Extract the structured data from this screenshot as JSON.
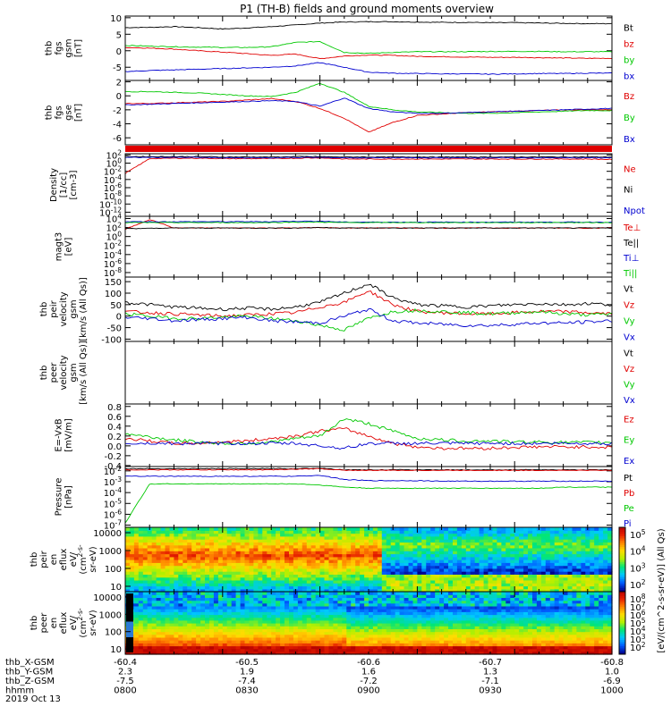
{
  "title": "P1 (TH-B) fields and ground moments overview",
  "date": "2019 Oct 13",
  "colors": {
    "black": "#000000",
    "red": "#e00000",
    "green": "#00c800",
    "blue": "#0000d0"
  },
  "chart_data": [
    {
      "type": "line",
      "ylabel": [
        "thb",
        "fgs",
        "gsm",
        "[nT]"
      ],
      "yticks": [
        10,
        5,
        0,
        -5
      ],
      "ylim": [
        -9,
        10.5
      ],
      "series": [
        {
          "name": "Bt",
          "color": "black",
          "values": [
            7,
            7.1,
            7.3,
            7,
            6.6,
            6.9,
            7.3,
            7.8,
            8.4,
            8.7,
            8.8,
            8.8,
            8.7,
            8.6,
            8.6,
            8.5,
            8.5,
            8.4,
            8.3,
            8.2,
            8.2
          ]
        },
        {
          "name": "bz",
          "color": "red",
          "values": [
            1,
            0.8,
            0.5,
            0,
            -0.4,
            -0.9,
            -1.4,
            -1,
            -2.4,
            -1.6,
            -1.3,
            -1.4,
            -1.7,
            -1.8,
            -1.9,
            -2,
            -2,
            -2.1,
            -2.2,
            -2.3,
            -2.3
          ]
        },
        {
          "name": "by",
          "color": "green",
          "values": [
            1.6,
            1.4,
            1.2,
            1.1,
            1,
            1,
            1.2,
            2.5,
            2.8,
            -0.5,
            -0.8,
            -0.5,
            -0.3,
            -0.3,
            -0.3,
            -0.2,
            -0.2,
            -0.2,
            -0.3,
            -0.3,
            -0.3
          ]
        },
        {
          "name": "bx",
          "color": "blue",
          "values": [
            -6.3,
            -6,
            -5.8,
            -5.6,
            -5.4,
            -5.2,
            -5,
            -4.6,
            -3.6,
            -5,
            -6.5,
            -6.8,
            -6.9,
            -7,
            -7,
            -7.1,
            -7,
            -6.9,
            -6.9,
            -6.8,
            -6.8
          ]
        }
      ]
    },
    {
      "type": "line",
      "ylabel": [
        "thb",
        "fgs",
        "gse",
        "[nT]"
      ],
      "yticks": [
        2,
        0,
        -2,
        -4,
        -6
      ],
      "ylim": [
        -7,
        2.2
      ],
      "series": [
        {
          "name": "Bz",
          "color": "red",
          "values": [
            -1.1,
            -1.1,
            -1,
            -0.9,
            -0.8,
            -0.6,
            -0.4,
            -0.8,
            -1.8,
            -3.2,
            -5.2,
            -3.8,
            -2.8,
            -2.6,
            -2.4,
            -2.3,
            -2.2,
            -2.1,
            -2,
            -2,
            -2
          ]
        },
        {
          "name": "By",
          "color": "green",
          "values": [
            0.6,
            0.6,
            0.5,
            0.4,
            0.2,
            0,
            -0.1,
            0.5,
            1.8,
            0.5,
            -1.5,
            -2,
            -2.3,
            -2.4,
            -2.5,
            -2.5,
            -2.4,
            -2.3,
            -2.2,
            -2.1,
            -2.1
          ]
        },
        {
          "name": "Bx",
          "color": "blue",
          "values": [
            -1.3,
            -1.2,
            -1.1,
            -1,
            -0.9,
            -0.8,
            -0.7,
            -0.8,
            -1.5,
            -0.3,
            -1.8,
            -2.3,
            -2.5,
            -2.5,
            -2.4,
            -2.3,
            -2.2,
            -2.1,
            -2,
            -1.9,
            -1.8
          ]
        }
      ]
    },
    {
      "type": "line",
      "ylabel": [
        "Density",
        "[1/cc]",
        "[cm-3]"
      ],
      "yticks": [
        "10^2",
        "10^0",
        "10^-2",
        "10^-4",
        "10^-6",
        "10^-8",
        "10^-10",
        "10^-12"
      ],
      "ylim": [
        -13,
        2.3
      ],
      "log": true,
      "series": [
        {
          "name": "Ne",
          "color": "red",
          "values": [
            -2.5,
            1.1,
            1.2,
            1.2,
            1.1,
            1.1,
            1.1,
            1.2,
            1.3,
            1,
            1,
            1,
            1,
            1,
            1,
            1,
            1,
            1,
            1,
            1,
            0.9
          ]
        },
        {
          "name": "Ni",
          "color": "black",
          "values": [
            1.6,
            1.6,
            1.6,
            1.6,
            1.5,
            1.5,
            1.5,
            1.6,
            1.6,
            1.5,
            1.5,
            1.5,
            1.5,
            1.5,
            1.5,
            1.5,
            1.5,
            1.5,
            1.5,
            1.5,
            1.5
          ]
        },
        {
          "name": "Npot",
          "color": "blue",
          "values": [
            1.4,
            1.4,
            1.4,
            1.4,
            1.3,
            1.3,
            1.3,
            1.4,
            1.4,
            1.3,
            1.3,
            1.3,
            1.3,
            1.3,
            1.3,
            1.3,
            1.3,
            1.3,
            1.3,
            1.3,
            1.3
          ]
        }
      ]
    },
    {
      "type": "line",
      "ylabel": [
        "magt3",
        "[eV]"
      ],
      "yticks": [
        "10^4",
        "10^2",
        "10^0",
        "10^-2",
        "10^-4",
        "10^-6",
        "10^-8"
      ],
      "ylim": [
        -9,
        4.5
      ],
      "log": true,
      "series": [
        {
          "name": "Te⊥",
          "color": "red",
          "values": [
            1.6,
            3.8,
            1.9,
            1.9,
            1.9,
            1.9,
            1.9,
            1.9,
            2,
            1.9,
            1.9,
            1.9,
            1.9,
            1.9,
            1.9,
            1.9,
            1.9,
            1.9,
            1.9,
            1.9,
            1.9
          ]
        },
        {
          "name": "Te||",
          "color": "black",
          "values": [
            1.8,
            1.8,
            1.9,
            1.9,
            1.9,
            1.9,
            1.9,
            1.9,
            2,
            1.9,
            1.9,
            1.9,
            1.9,
            1.9,
            1.9,
            1.9,
            1.9,
            1.9,
            1.9,
            1.9,
            1.9
          ]
        },
        {
          "name": "Ti⊥",
          "color": "blue",
          "values": [
            3.3,
            3.3,
            3.3,
            3.3,
            3.3,
            3.3,
            3.3,
            3.4,
            3.4,
            3.2,
            3.2,
            3.2,
            3.2,
            3.2,
            3.2,
            3.2,
            3.2,
            3.2,
            3.2,
            3.2,
            3.2
          ]
        },
        {
          "name": "Ti||",
          "color": "green",
          "values": [
            3.1,
            3.1,
            3.1,
            3.1,
            3.1,
            3.1,
            3.1,
            3.2,
            3.2,
            3.1,
            3.1,
            3.1,
            3.1,
            3.1,
            3.1,
            3.1,
            3.1,
            3.1,
            3.1,
            3.1,
            3.1
          ]
        }
      ]
    },
    {
      "type": "line",
      "ylabel": [
        "thb",
        "peir",
        "velocity",
        "gsm",
        "[km/s (All Qs)]"
      ],
      "yticks": [
        150,
        100,
        50,
        0,
        -50,
        -100
      ],
      "ylim": [
        -110,
        170
      ],
      "series": [
        {
          "name": "Vt",
          "color": "black",
          "values": [
            60,
            50,
            40,
            35,
            30,
            35,
            30,
            40,
            60,
            100,
            140,
            80,
            50,
            45,
            40,
            45,
            50,
            55,
            50,
            55,
            50
          ]
        },
        {
          "name": "Vz",
          "color": "red",
          "values": [
            20,
            15,
            10,
            5,
            0,
            5,
            10,
            15,
            40,
            60,
            110,
            50,
            20,
            15,
            10,
            10,
            15,
            20,
            20,
            15,
            10
          ]
        },
        {
          "name": "Vy",
          "color": "green",
          "values": [
            10,
            0,
            -10,
            -10,
            -5,
            0,
            -10,
            -20,
            -40,
            -60,
            -10,
            20,
            25,
            20,
            15,
            10,
            15,
            20,
            10,
            5,
            10
          ]
        },
        {
          "name": "Vx",
          "color": "blue",
          "values": [
            -5,
            -10,
            -20,
            -15,
            -10,
            -5,
            -20,
            -25,
            -30,
            0,
            30,
            -20,
            -30,
            -35,
            -40,
            -40,
            -35,
            -30,
            -30,
            -25,
            -20
          ]
        }
      ]
    },
    {
      "type": "line",
      "ylabel": [
        "thb",
        "peer",
        "velocity",
        "gsm",
        "[km/s (All Qs)]"
      ],
      "yticks": [],
      "ylim": [
        0,
        1
      ],
      "series": [
        {
          "name": "Vt",
          "color": "black",
          "values": []
        },
        {
          "name": "Vz",
          "color": "red",
          "values": []
        },
        {
          "name": "Vy",
          "color": "green",
          "values": []
        },
        {
          "name": "Vx",
          "color": "blue",
          "values": []
        }
      ]
    },
    {
      "type": "line",
      "ylabel": [
        "E=-VxB",
        "[mV/m]"
      ],
      "yticks": [
        0.8,
        0.6,
        0.4,
        0.2,
        0.0,
        -0.2,
        -0.4
      ],
      "ylim": [
        -0.42,
        0.85
      ],
      "series": [
        {
          "name": "Ez",
          "color": "red",
          "values": [
            0.15,
            0.1,
            0.05,
            0.05,
            0.08,
            0.1,
            0.15,
            0.2,
            0.3,
            0.35,
            0.2,
            0.05,
            -0.02,
            -0.05,
            -0.05,
            -0.05,
            -0.03,
            -0.02,
            -0.02,
            -0.02,
            -0.03
          ]
        },
        {
          "name": "Ey",
          "color": "green",
          "values": [
            0.25,
            0.18,
            0.12,
            0.08,
            0.05,
            0.05,
            0.08,
            0.15,
            0.2,
            0.55,
            0.45,
            0.3,
            0.15,
            0.12,
            0.1,
            0.1,
            0.08,
            0.08,
            0.07,
            0.07,
            0.07
          ]
        },
        {
          "name": "Ex",
          "color": "blue",
          "values": [
            0.05,
            0.05,
            0.05,
            0.05,
            0.05,
            0.05,
            0.05,
            0.05,
            0,
            -0.05,
            0.05,
            0.05,
            0.05,
            0.05,
            0.05,
            0.05,
            0.05,
            0.05,
            0.05,
            0.05,
            0.05
          ]
        }
      ]
    },
    {
      "type": "line",
      "ylabel": [
        "Pressure",
        "[nPa]"
      ],
      "yticks": [
        "10^-2",
        "10^-3",
        "10^-4",
        "10^-5",
        "10^-6",
        "10^-7"
      ],
      "ylim": [
        -7.2,
        -1.6
      ],
      "log": true,
      "series": [
        {
          "name": "Pt",
          "color": "black",
          "values": [
            -1.8,
            -1.8,
            -1.8,
            -1.8,
            -1.8,
            -1.8,
            -1.8,
            -1.8,
            -1.75,
            -1.9,
            -1.9,
            -1.9,
            -1.9,
            -1.9,
            -1.9,
            -1.9,
            -1.9,
            -1.9,
            -1.9,
            -1.9,
            -1.9
          ]
        },
        {
          "name": "Pb",
          "color": "red",
          "values": [
            -1.9,
            -1.9,
            -1.9,
            -1.9,
            -1.9,
            -1.9,
            -1.9,
            -1.85,
            -1.8,
            -1.95,
            -1.95,
            -1.95,
            -1.95,
            -1.95,
            -1.95,
            -1.95,
            -1.95,
            -1.95,
            -1.95,
            -1.95,
            -1.95
          ]
        },
        {
          "name": "Pe",
          "color": "green",
          "values": [
            -6.8,
            -3.2,
            -3.2,
            -3.2,
            -3.2,
            -3.2,
            -3.2,
            -3.2,
            -3.3,
            -3.5,
            -3.6,
            -3.6,
            -3.6,
            -3.6,
            -3.6,
            -3.6,
            -3.6,
            -3.6,
            -3.5,
            -3.5,
            -3.5
          ]
        },
        {
          "name": "Pi",
          "color": "blue",
          "values": [
            -2.5,
            -2.5,
            -2.5,
            -2.5,
            -2.5,
            -2.5,
            -2.5,
            -2.5,
            -2.4,
            -2.8,
            -2.9,
            -2.9,
            -2.9,
            -2.95,
            -2.95,
            -2.95,
            -2.95,
            -2.95,
            -2.95,
            -2.95,
            -2.95
          ]
        }
      ]
    },
    {
      "type": "heatmap",
      "ylabel": [
        "thb",
        "peir",
        "en",
        "eflux",
        "eV/",
        "(cm^2-s-",
        "sr-eV)"
      ],
      "yticks": [
        "10000",
        "1000",
        "100",
        "10"
      ],
      "ylim": [
        5,
        20000
      ],
      "log": true,
      "colorbar": {
        "ticks": [
          "10^5",
          "10^4",
          "10^3",
          "10^2"
        ]
      }
    },
    {
      "type": "heatmap",
      "ylabel": [
        "thb",
        "peer",
        "en",
        "eflux",
        "eV/",
        "(cm^2-s-",
        "sr-eV)"
      ],
      "yticks": [
        "10000",
        "1000",
        "100",
        "10"
      ],
      "ylim": [
        5,
        20000
      ],
      "log": true,
      "colorbar": {
        "ticks": [
          "10^8",
          "10^7",
          "10^6",
          "10^5",
          "10^4",
          "10^3",
          "10^2"
        ]
      }
    }
  ],
  "colorbar_label": "[eV/(cm^2-s-sr-eV)] (All Qs)",
  "xaxis": {
    "rows": [
      {
        "label": "thb_X-GSM",
        "values": [
          "-60.4",
          "-60.5",
          "-60.6",
          "-60.7",
          "-60.8"
        ]
      },
      {
        "label": "thb_Y-GSM",
        "values": [
          "2.3",
          "1.9",
          "1.6",
          "1.3",
          "1.0"
        ]
      },
      {
        "label": "thb_Z-GSM",
        "values": [
          "-7.5",
          "-7.4",
          "-7.2",
          "-7.1",
          "-6.9"
        ]
      },
      {
        "label": "hhmm",
        "values": [
          "0800",
          "0830",
          "0900",
          "0930",
          "1000"
        ]
      }
    ]
  }
}
